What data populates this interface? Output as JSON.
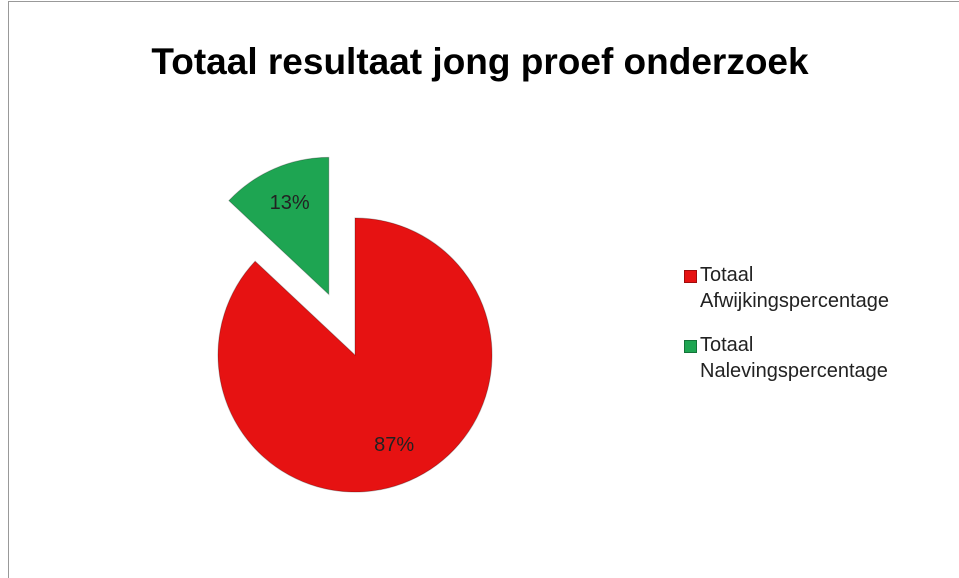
{
  "chart_data": {
    "type": "pie",
    "title": "Totaal resultaat jong proef onderzoek",
    "categories": [
      "Totaal Afwijkingspercentage",
      "Totaal Nalevingspercentage"
    ],
    "values": [
      87,
      13
    ],
    "value_labels": [
      "87%",
      "13%"
    ],
    "colors": [
      "#e61212",
      "#1ea552"
    ],
    "legend": "right"
  }
}
